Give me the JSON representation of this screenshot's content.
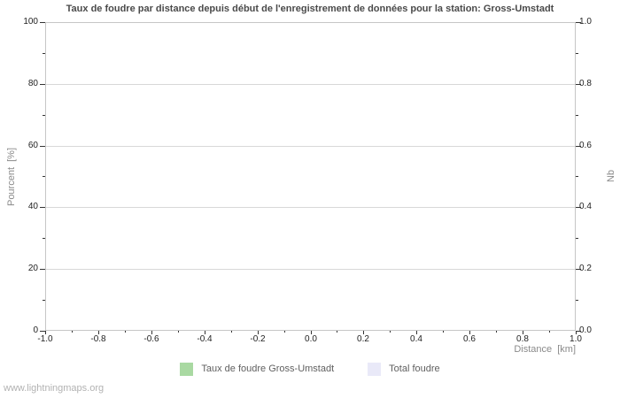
{
  "watermark": "www.lightningmaps.org",
  "chart_data": {
    "type": "bar",
    "title": "Taux de foudre par distance depuis début de l'enregistrement de données pour la station: Gross-Umstadt",
    "xlabel": "Distance  [km]",
    "ylabel_left": "Pourcent  [%]",
    "ylabel_right": "Nb",
    "xlim": [
      -1.0,
      1.0
    ],
    "ylim_left": [
      0,
      100
    ],
    "ylim_right": [
      0.0,
      1.0
    ],
    "x_tick_labels": [
      "-1.0",
      "-0.8",
      "-0.6",
      "-0.4",
      "-0.2",
      "0.0",
      "0.2",
      "0.4",
      "0.6",
      "0.8",
      "1.0"
    ],
    "y_left_tick_labels": [
      "0",
      "20",
      "40",
      "60",
      "80",
      "100"
    ],
    "y_right_tick_labels": [
      "0.0",
      "0.2",
      "0.4",
      "0.6",
      "0.8",
      "1.0"
    ],
    "grid": "horizontal-major-only",
    "legend_position": "bottom-center",
    "series": [
      {
        "name": "Taux de foudre Gross-Umstadt",
        "color": "#a9d9a2",
        "values": []
      },
      {
        "name": "Total foudre",
        "color": "#e9e9f8",
        "values": []
      }
    ],
    "colors": {
      "background": "#ffffff",
      "plot_border": "#c6c6c6",
      "gridline": "#d8d8d8",
      "tick": "#333333",
      "tick_label": "#222222",
      "axis_title": "#8a8a8a",
      "title": "#4a4a4a",
      "legend_text": "#606060",
      "watermark": "#b2b2b2"
    }
  }
}
